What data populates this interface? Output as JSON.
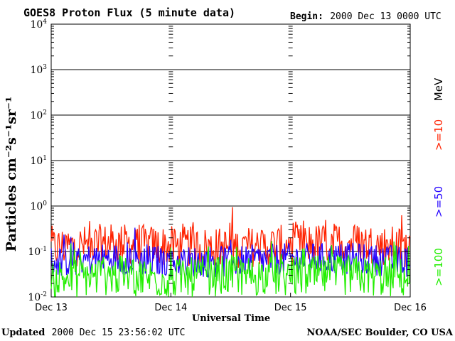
{
  "chart_data": {
    "type": "line",
    "title": "GOES8 Proton Flux (5 minute data)",
    "begin_label": "Begin:",
    "begin_value": "2000 Dec 13 0000 UTC",
    "ylabel": "Particles cm⁻²s⁻¹sr⁻¹",
    "xlabel": "Universal Time",
    "y_scale": "log",
    "ylim": [
      0.01,
      10000
    ],
    "y_ticks": [
      {
        "base": "10",
        "exp": "4"
      },
      {
        "base": "10",
        "exp": "3"
      },
      {
        "base": "10",
        "exp": "2"
      },
      {
        "base": "10",
        "exp": "1"
      },
      {
        "base": "10",
        "exp": "0"
      },
      {
        "base": "10",
        "exp": "-1"
      },
      {
        "base": "10",
        "exp": "-2"
      }
    ],
    "x_ticks": [
      "Dec 13",
      "Dec 14",
      "Dec 15",
      "Dec 16"
    ],
    "grid": true,
    "units_label": "MeV",
    "series": [
      {
        "name": ">=10",
        "color": "#ff2200",
        "x": [
          "2000-12-13 00:00",
          "2000-12-13 12:00",
          "2000-12-14 00:00",
          "2000-12-14 12:00",
          "2000-12-15 00:00",
          "2000-12-15 12:00",
          "2000-12-16 00:00"
        ],
        "values": [
          0.12,
          0.15,
          0.13,
          0.12,
          0.14,
          0.16,
          0.12
        ]
      },
      {
        "name": ">=50",
        "color": "#2200ff",
        "x": [
          "2000-12-13 00:00",
          "2000-12-13 12:00",
          "2000-12-14 00:00",
          "2000-12-14 12:00",
          "2000-12-15 00:00",
          "2000-12-15 12:00",
          "2000-12-16 00:00"
        ],
        "values": [
          0.06,
          0.07,
          0.06,
          0.06,
          0.07,
          0.07,
          0.06
        ]
      },
      {
        "name": ">=100",
        "color": "#22ee00",
        "x": [
          "2000-12-13 00:00",
          "2000-12-13 12:00",
          "2000-12-14 00:00",
          "2000-12-14 12:00",
          "2000-12-15 00:00",
          "2000-12-15 12:00",
          "2000-12-16 00:00"
        ],
        "values": [
          0.025,
          0.03,
          0.025,
          0.03,
          0.028,
          0.03,
          0.026
        ]
      }
    ]
  },
  "footer": {
    "updated_label": "Updated",
    "updated_value": "2000 Dec 15 23:56:02 UTC",
    "source": "NOAA/SEC Boulder, CO USA"
  }
}
